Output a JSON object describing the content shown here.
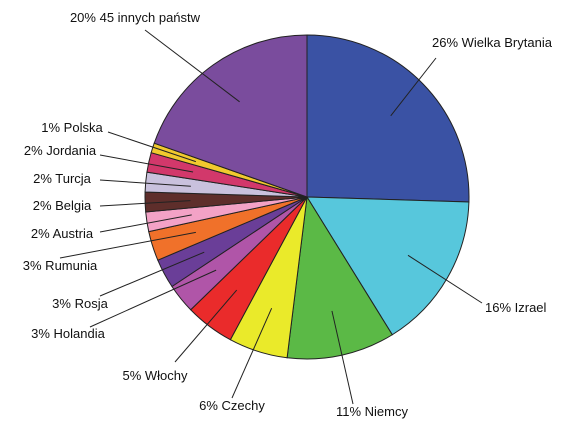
{
  "chart_data": {
    "type": "pie",
    "start_angle_deg": 0,
    "direction": "clockwise",
    "slices": [
      {
        "label": "Wielka Brytania",
        "text": "26% Wielka Brytania",
        "value": 26,
        "color": "#3a52a4"
      },
      {
        "label": "Izrael",
        "text": "16% Izrael",
        "value": 16,
        "color": "#57c7dc"
      },
      {
        "label": "Niemcy",
        "text": "11% Niemcy",
        "value": 11,
        "color": "#5bb946"
      },
      {
        "label": "Czechy",
        "text": "6% Czechy",
        "value": 6,
        "color": "#eaea2a"
      },
      {
        "label": "Włochy",
        "text": "5% Włochy",
        "value": 5,
        "color": "#ea2b2b"
      },
      {
        "label": "Holandia",
        "text": "3% Holandia",
        "value": 3,
        "color": "#b055a8"
      },
      {
        "label": "Rosja",
        "text": "3% Rosja",
        "value": 3,
        "color": "#6a3e98"
      },
      {
        "label": "Rumunia",
        "text": "3% Rumunia",
        "value": 3,
        "color": "#f0712a"
      },
      {
        "label": "Austria",
        "text": "2% Austria",
        "value": 2,
        "color": "#f3a2c6"
      },
      {
        "label": "Belgia",
        "text": "2% Belgia",
        "value": 2,
        "color": "#5e2e2b"
      },
      {
        "label": "Turcja",
        "text": "2% Turcja",
        "value": 2,
        "color": "#c9c1dd"
      },
      {
        "label": "Jordania",
        "text": "2% Jordania",
        "value": 2,
        "color": "#d2386b"
      },
      {
        "label": "Polska",
        "text": "1% Polska",
        "value": 1,
        "color": "#f1c92e"
      },
      {
        "label": "45 innych państw",
        "text": "20% 45 innych państw",
        "value": 20,
        "color": "#7a4c9d"
      }
    ]
  }
}
